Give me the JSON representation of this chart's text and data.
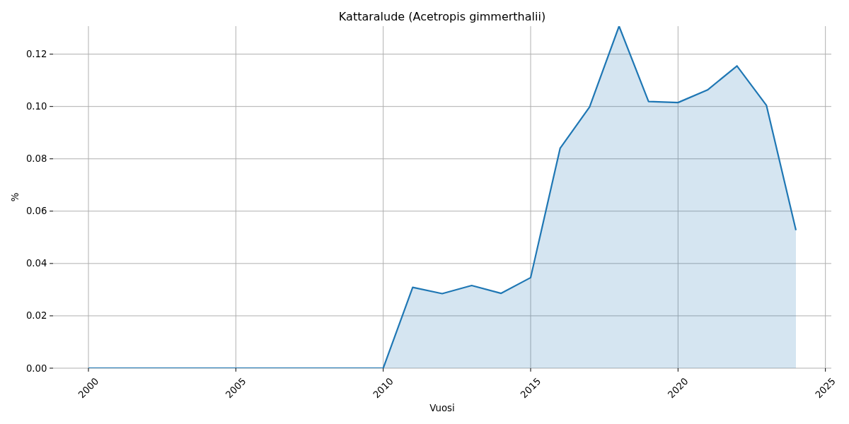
{
  "chart_data": {
    "type": "area",
    "title": "Kattaralude (Acetropis gimmerthalii)",
    "xlabel": "Vuosi",
    "ylabel": "%",
    "x": [
      2000,
      2001,
      2002,
      2003,
      2004,
      2005,
      2006,
      2007,
      2008,
      2009,
      2010,
      2011,
      2012,
      2013,
      2014,
      2015,
      2016,
      2017,
      2018,
      2019,
      2020,
      2021,
      2022,
      2023,
      2024
    ],
    "series": [
      {
        "color": "#1f77b4",
        "values": [
          0,
          0,
          0,
          0,
          0,
          0,
          0,
          0,
          0,
          0,
          0,
          0.0309,
          0.0285,
          0.0316,
          0.0286,
          0.0346,
          0.084,
          0.0998,
          0.1307,
          0.1019,
          0.1015,
          0.1063,
          0.1155,
          0.1004,
          0.0527
        ]
      }
    ],
    "xlim": [
      1998.8,
      2025.2
    ],
    "xticks": [
      2000,
      2005,
      2010,
      2015,
      2020,
      2025
    ],
    "ylim": [
      0,
      0.1307
    ],
    "yticks": [
      {
        "value": 0,
        "label": "0.00"
      },
      {
        "value": 0.02,
        "label": "0.02"
      },
      {
        "value": 0.04,
        "label": "0.04"
      },
      {
        "value": 0.06,
        "label": "0.06"
      },
      {
        "value": 0.08,
        "label": "0.08"
      },
      {
        "value": 0.1,
        "label": "0.10"
      },
      {
        "value": 0.12,
        "label": "0.12"
      }
    ],
    "grid": true
  }
}
